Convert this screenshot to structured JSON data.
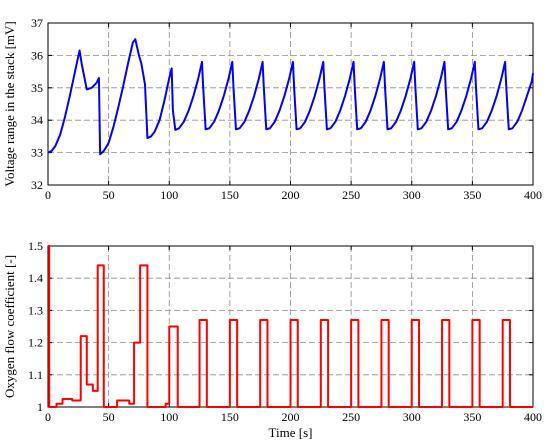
{
  "chart_data": [
    {
      "type": "line",
      "title": "",
      "xlabel": "",
      "ylabel": "Voltage range in the stack [mV]",
      "xlim": [
        0,
        400
      ],
      "ylim": [
        32,
        37
      ],
      "xticks": [
        0,
        50,
        100,
        150,
        200,
        250,
        300,
        350,
        400
      ],
      "yticks": [
        32,
        33,
        34,
        35,
        36,
        37
      ],
      "xtick_labels": [
        "0",
        "50",
        "100",
        "150",
        "200",
        "250",
        "300",
        "350",
        "400"
      ],
      "ytick_labels": [
        "32",
        "33",
        "34",
        "35",
        "36",
        "37"
      ],
      "grid": true,
      "series": [
        {
          "color": "#0000ff",
          "x": [
            0,
            3,
            6,
            10,
            14,
            18,
            22,
            26,
            28,
            32,
            36,
            40,
            42,
            43,
            46,
            50,
            54,
            58,
            62,
            66,
            70,
            72,
            75,
            77,
            80,
            82,
            85,
            88,
            92,
            96,
            100,
            102,
            103,
            105,
            108,
            112,
            116,
            120,
            124,
            127,
            128,
            130,
            133,
            137,
            141,
            145,
            149,
            152,
            153,
            155,
            158,
            162,
            166,
            170,
            174,
            177,
            178,
            180,
            183,
            187,
            191,
            195,
            199,
            202,
            203,
            205,
            208,
            212,
            216,
            220,
            224,
            227,
            228,
            230,
            233,
            237,
            241,
            245,
            249,
            252,
            253,
            255,
            258,
            262,
            266,
            270,
            274,
            277,
            278,
            280,
            283,
            287,
            291,
            295,
            299,
            302,
            303,
            305,
            308,
            312,
            316,
            320,
            324,
            327,
            328,
            330,
            333,
            337,
            341,
            345,
            349,
            352,
            353,
            355,
            358,
            362,
            366,
            370,
            374,
            377,
            378,
            380,
            383,
            387,
            391,
            395,
            399,
            400
          ],
          "y": [
            33.0,
            33.05,
            33.2,
            33.55,
            34.1,
            34.75,
            35.45,
            36.15,
            35.7,
            34.95,
            35.0,
            35.15,
            35.3,
            32.95,
            33.05,
            33.3,
            33.8,
            34.4,
            35.05,
            35.75,
            36.4,
            36.5,
            36.0,
            35.75,
            35.1,
            33.45,
            33.5,
            33.65,
            34.0,
            34.6,
            35.3,
            35.6,
            34.3,
            33.7,
            33.75,
            33.95,
            34.3,
            34.75,
            35.3,
            35.8,
            35.0,
            33.72,
            33.75,
            33.95,
            34.3,
            34.75,
            35.3,
            35.8,
            35.0,
            33.72,
            33.75,
            33.95,
            34.3,
            34.75,
            35.3,
            35.8,
            35.0,
            33.72,
            33.75,
            33.95,
            34.3,
            34.75,
            35.3,
            35.8,
            35.0,
            33.72,
            33.75,
            33.95,
            34.3,
            34.75,
            35.3,
            35.8,
            35.0,
            33.72,
            33.75,
            33.95,
            34.3,
            34.75,
            35.3,
            35.8,
            35.0,
            33.72,
            33.75,
            33.95,
            34.3,
            34.75,
            35.3,
            35.8,
            35.0,
            33.72,
            33.75,
            33.95,
            34.3,
            34.75,
            35.3,
            35.8,
            35.0,
            33.72,
            33.75,
            33.95,
            34.3,
            34.75,
            35.3,
            35.8,
            35.0,
            33.72,
            33.75,
            33.95,
            34.3,
            34.75,
            35.3,
            35.8,
            35.0,
            33.72,
            33.75,
            33.95,
            34.3,
            34.75,
            35.3,
            35.8,
            35.0,
            33.72,
            33.75,
            33.95,
            34.3,
            34.75,
            35.2,
            35.45
          ]
        }
      ]
    },
    {
      "type": "line",
      "title": "",
      "xlabel": "Time [s]",
      "ylabel": "Oxygen flow coefficient [-]",
      "xlim": [
        0,
        400
      ],
      "ylim": [
        1,
        1.5
      ],
      "xticks": [
        0,
        50,
        100,
        150,
        200,
        250,
        300,
        350,
        400
      ],
      "yticks": [
        1,
        1.1,
        1.2,
        1.3,
        1.4,
        1.5
      ],
      "xtick_labels": [
        "0",
        "50",
        "100",
        "150",
        "200",
        "250",
        "300",
        "350",
        "400"
      ],
      "ytick_labels": [
        "1",
        "1.1",
        "1.2",
        "1.3",
        "1.4",
        "1.5"
      ],
      "grid": true,
      "series": [
        {
          "color": "#ff0000",
          "x": [
            0,
            1,
            1,
            7,
            7,
            12,
            12,
            20,
            20,
            27,
            27,
            32,
            32,
            37,
            37,
            41,
            41,
            46,
            46,
            57,
            57,
            67,
            67,
            71,
            71,
            76,
            76,
            82,
            82,
            97,
            97,
            100,
            100,
            107,
            107,
            125,
            125,
            131,
            131,
            150,
            150,
            156,
            156,
            175,
            175,
            181,
            181,
            200,
            200,
            206,
            206,
            225,
            225,
            231,
            231,
            250,
            250,
            256,
            256,
            275,
            275,
            281,
            281,
            300,
            300,
            306,
            306,
            325,
            325,
            331,
            331,
            350,
            350,
            356,
            356,
            375,
            375,
            381,
            381,
            400
          ],
          "y": [
            1.5,
            1.5,
            1.0,
            1.0,
            1.01,
            1.01,
            1.025,
            1.025,
            1.02,
            1.02,
            1.22,
            1.22,
            1.07,
            1.07,
            1.05,
            1.05,
            1.44,
            1.44,
            1.0,
            1.0,
            1.02,
            1.02,
            1.01,
            1.01,
            1.2,
            1.2,
            1.44,
            1.44,
            1.0,
            1.0,
            1.01,
            1.01,
            1.25,
            1.25,
            1.0,
            1.0,
            1.27,
            1.27,
            1.0,
            1.0,
            1.27,
            1.27,
            1.0,
            1.0,
            1.27,
            1.27,
            1.0,
            1.0,
            1.27,
            1.27,
            1.0,
            1.0,
            1.27,
            1.27,
            1.0,
            1.0,
            1.27,
            1.27,
            1.0,
            1.0,
            1.27,
            1.27,
            1.0,
            1.0,
            1.27,
            1.27,
            1.0,
            1.0,
            1.27,
            1.27,
            1.0,
            1.0,
            1.27,
            1.27,
            1.0,
            1.0,
            1.27,
            1.27,
            1.0,
            1.0
          ]
        }
      ]
    }
  ]
}
